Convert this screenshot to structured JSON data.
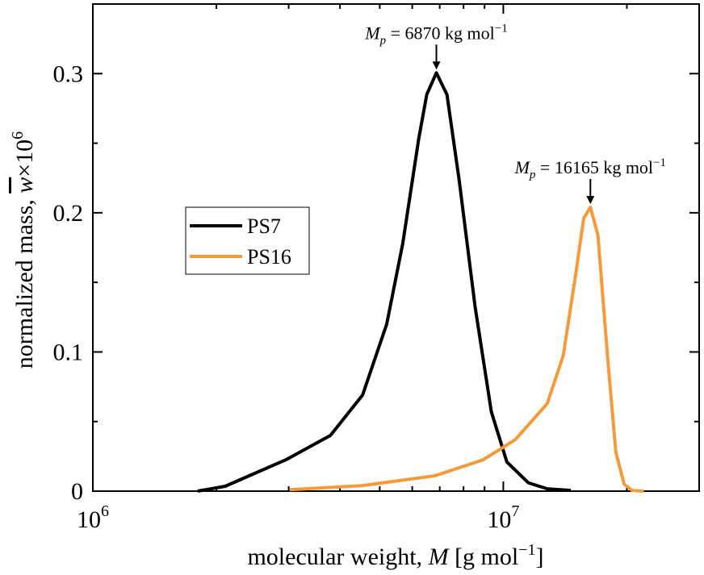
{
  "chart_data": {
    "type": "line",
    "xlabel": {
      "text": "molecular weight, ",
      "var": "M",
      "unit": " [g mol",
      "sup": "−1",
      "end": "]"
    },
    "ylabel": {
      "text": "normalized mass, ",
      "var": "w",
      "times": "×10",
      "sup": "6"
    },
    "xscale": "log",
    "xlim": [
      1000000,
      30000000
    ],
    "xticks": [
      {
        "value": 1000000,
        "label": "10"
      },
      {
        "value": 10000000,
        "label": "10"
      }
    ],
    "xtick_exponents": [
      "6",
      "7"
    ],
    "xminor": [
      2000000,
      3000000,
      4000000,
      5000000,
      6000000,
      7000000,
      8000000,
      9000000,
      20000000
    ],
    "ylim": [
      0,
      0.35
    ],
    "yticks": [
      0,
      0.1,
      0.2,
      0.3
    ],
    "yminor": [
      0.05,
      0.15,
      0.25
    ],
    "legend": "center left",
    "series": [
      {
        "name": "PS7",
        "color": "#000000",
        "x": [
          1800000,
          2100000,
          2950000,
          3790000,
          4540000,
          5200000,
          5690000,
          6220000,
          6510000,
          6870000,
          7290000,
          7800000,
          8540000,
          9350000,
          10200000,
          11500000,
          12800000,
          14600000
        ],
        "values": [
          0,
          0.0035,
          0.0225,
          0.04,
          0.069,
          0.12,
          0.178,
          0.253,
          0.285,
          0.3006,
          0.285,
          0.224,
          0.132,
          0.057,
          0.021,
          0.006,
          0.0017,
          0.0005
        ]
      },
      {
        "name": "PS16",
        "color": "#f59a3a",
        "x": [
          3020000,
          4540000,
          6810000,
          8930000,
          10700000,
          12800000,
          14000000,
          15000000,
          15700000,
          16300000,
          17000000,
          18000000,
          18800000,
          19700000,
          20600000,
          22000000
        ],
        "values": [
          0.001,
          0.004,
          0.011,
          0.0225,
          0.037,
          0.063,
          0.0975,
          0.155,
          0.196,
          0.204,
          0.184,
          0.092,
          0.028,
          0.005,
          0.0005,
          0
        ]
      }
    ],
    "annotations": [
      {
        "var": "M",
        "sub": "p",
        "text": " = 6870 kg mol",
        "sup": "−1",
        "x": 6870000,
        "y": 0.3006
      },
      {
        "var": "M",
        "sub": "p",
        "text": " = 16165 kg mol",
        "sup": "−1",
        "x": 16300000,
        "y": 0.204
      }
    ]
  }
}
